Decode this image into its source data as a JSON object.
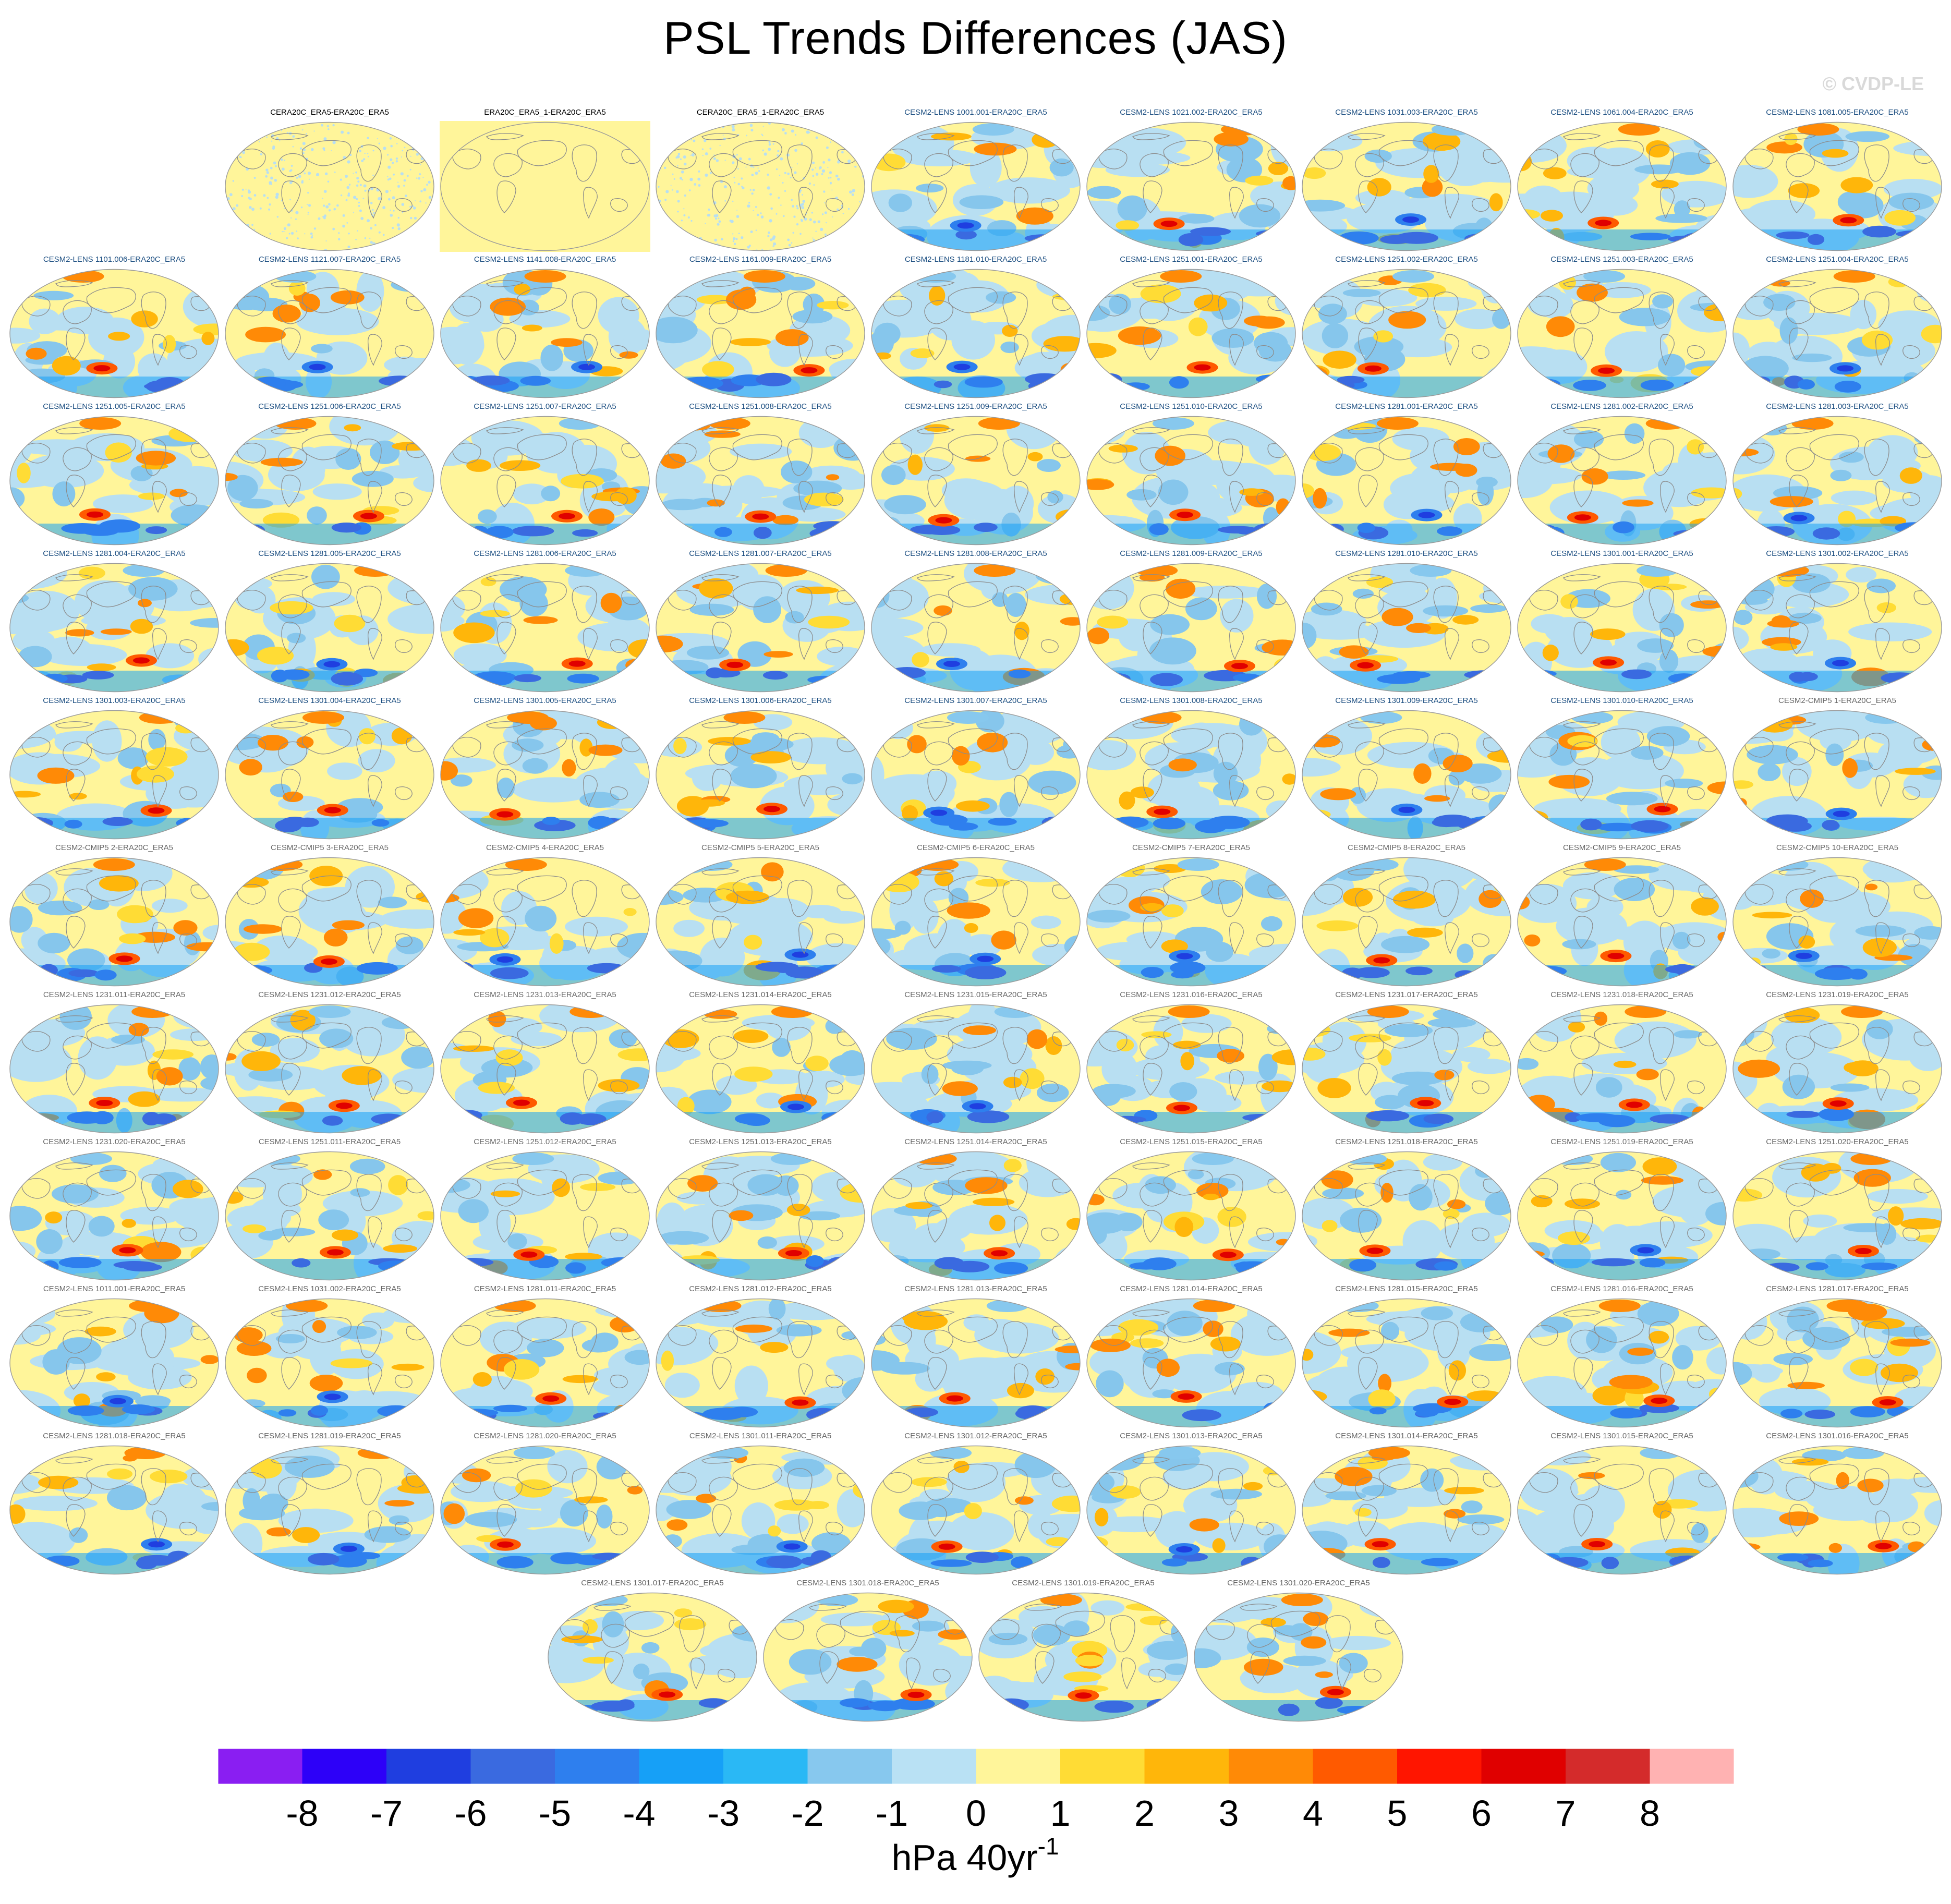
{
  "title": "PSL Trends Differences (JAS)",
  "copyright": "© CVDP-LE",
  "colors": {
    "ocean_base": "#fff59a",
    "light_blue": "#b8dff2",
    "mid_blue": "#86c6ec",
    "coast": "#8c8c8c",
    "outline": "#9a9a9a"
  },
  "chart_data": {
    "type": "heatmap",
    "title": "PSL Trends Differences (JAS)",
    "projection": "global maps (robinson-like)",
    "colorbar": {
      "units_label": "hPa 40yr",
      "units_superscript": "-1",
      "ticks": [
        "-8",
        "-7",
        "-6",
        "-5",
        "-4",
        "-3",
        "-2",
        "-1",
        "0",
        "1",
        "2",
        "3",
        "4",
        "5",
        "6",
        "7",
        "8"
      ],
      "colors": [
        "#8a1ef2",
        "#2d00f8",
        "#1f3ee0",
        "#3a6ae0",
        "#2e7fee",
        "#16a0f7",
        "#2ab8f5",
        "#87c8ee",
        "#b9e1f4",
        "#fff59a",
        "#ffdc35",
        "#ffb60a",
        "#ff8a06",
        "#ff5a00",
        "#ff1500",
        "#e00000",
        "#d42b2b",
        "#ffb2b2"
      ]
    },
    "panels": [
      {
        "label": "CERA20C_ERA5-ERA20C_ERA5",
        "group": "obs"
      },
      {
        "label": "ERA20C_ERA5_1-ERA20C_ERA5",
        "group": "obs"
      },
      {
        "label": "CERA20C_ERA5_1-ERA20C_ERA5",
        "group": "obs"
      },
      {
        "label": "CESM2-LENS 1001.001-ERA20C_ERA5",
        "group": "blue"
      },
      {
        "label": "CESM2-LENS 1021.002-ERA20C_ERA5",
        "group": "blue"
      },
      {
        "label": "CESM2-LENS 1031.003-ERA20C_ERA5",
        "group": "blue"
      },
      {
        "label": "CESM2-LENS 1061.004-ERA20C_ERA5",
        "group": "blue"
      },
      {
        "label": "CESM2-LENS 1081.005-ERA20C_ERA5",
        "group": "blue"
      },
      {
        "label": "CESM2-LENS 1101.006-ERA20C_ERA5",
        "group": "blue"
      },
      {
        "label": "CESM2-LENS 1121.007-ERA20C_ERA5",
        "group": "blue"
      },
      {
        "label": "CESM2-LENS 1141.008-ERA20C_ERA5",
        "group": "blue"
      },
      {
        "label": "CESM2-LENS 1161.009-ERA20C_ERA5",
        "group": "blue"
      },
      {
        "label": "CESM2-LENS 1181.010-ERA20C_ERA5",
        "group": "blue"
      },
      {
        "label": "CESM2-LENS 1251.001-ERA20C_ERA5",
        "group": "blue"
      },
      {
        "label": "CESM2-LENS 1251.002-ERA20C_ERA5",
        "group": "blue"
      },
      {
        "label": "CESM2-LENS 1251.003-ERA20C_ERA5",
        "group": "blue"
      },
      {
        "label": "CESM2-LENS 1251.004-ERA20C_ERA5",
        "group": "blue"
      },
      {
        "label": "CESM2-LENS 1251.005-ERA20C_ERA5",
        "group": "blue"
      },
      {
        "label": "CESM2-LENS 1251.006-ERA20C_ERA5",
        "group": "blue"
      },
      {
        "label": "CESM2-LENS 1251.007-ERA20C_ERA5",
        "group": "blue"
      },
      {
        "label": "CESM2-LENS 1251.008-ERA20C_ERA5",
        "group": "blue"
      },
      {
        "label": "CESM2-LENS 1251.009-ERA20C_ERA5",
        "group": "blue"
      },
      {
        "label": "CESM2-LENS 1251.010-ERA20C_ERA5",
        "group": "blue"
      },
      {
        "label": "CESM2-LENS 1281.001-ERA20C_ERA5",
        "group": "blue"
      },
      {
        "label": "CESM2-LENS 1281.002-ERA20C_ERA5",
        "group": "blue"
      },
      {
        "label": "CESM2-LENS 1281.003-ERA20C_ERA5",
        "group": "blue"
      },
      {
        "label": "CESM2-LENS 1281.004-ERA20C_ERA5",
        "group": "blue"
      },
      {
        "label": "CESM2-LENS 1281.005-ERA20C_ERA5",
        "group": "blue"
      },
      {
        "label": "CESM2-LENS 1281.006-ERA20C_ERA5",
        "group": "blue"
      },
      {
        "label": "CESM2-LENS 1281.007-ERA20C_ERA5",
        "group": "blue"
      },
      {
        "label": "CESM2-LENS 1281.008-ERA20C_ERA5",
        "group": "blue"
      },
      {
        "label": "CESM2-LENS 1281.009-ERA20C_ERA5",
        "group": "blue"
      },
      {
        "label": "CESM2-LENS 1281.010-ERA20C_ERA5",
        "group": "blue"
      },
      {
        "label": "CESM2-LENS 1301.001-ERA20C_ERA5",
        "group": "blue"
      },
      {
        "label": "CESM2-LENS 1301.002-ERA20C_ERA5",
        "group": "blue"
      },
      {
        "label": "CESM2-LENS 1301.003-ERA20C_ERA5",
        "group": "blue"
      },
      {
        "label": "CESM2-LENS 1301.004-ERA20C_ERA5",
        "group": "blue"
      },
      {
        "label": "CESM2-LENS 1301.005-ERA20C_ERA5",
        "group": "blue"
      },
      {
        "label": "CESM2-LENS 1301.006-ERA20C_ERA5",
        "group": "blue"
      },
      {
        "label": "CESM2-LENS 1301.007-ERA20C_ERA5",
        "group": "blue"
      },
      {
        "label": "CESM2-LENS 1301.008-ERA20C_ERA5",
        "group": "blue"
      },
      {
        "label": "CESM2-LENS 1301.009-ERA20C_ERA5",
        "group": "blue"
      },
      {
        "label": "CESM2-LENS 1301.010-ERA20C_ERA5",
        "group": "blue"
      },
      {
        "label": "CESM2-CMIP5 1-ERA20C_ERA5",
        "group": "gray"
      },
      {
        "label": "CESM2-CMIP5 2-ERA20C_ERA5",
        "group": "gray"
      },
      {
        "label": "CESM2-CMIP5 3-ERA20C_ERA5",
        "group": "gray"
      },
      {
        "label": "CESM2-CMIP5 4-ERA20C_ERA5",
        "group": "gray"
      },
      {
        "label": "CESM2-CMIP5 5-ERA20C_ERA5",
        "group": "gray"
      },
      {
        "label": "CESM2-CMIP5 6-ERA20C_ERA5",
        "group": "gray"
      },
      {
        "label": "CESM2-CMIP5 7-ERA20C_ERA5",
        "group": "gray"
      },
      {
        "label": "CESM2-CMIP5 8-ERA20C_ERA5",
        "group": "gray"
      },
      {
        "label": "CESM2-CMIP5 9-ERA20C_ERA5",
        "group": "gray"
      },
      {
        "label": "CESM2-CMIP5 10-ERA20C_ERA5",
        "group": "gray"
      },
      {
        "label": "CESM2-LENS 1231.011-ERA20C_ERA5",
        "group": "gray"
      },
      {
        "label": "CESM2-LENS 1231.012-ERA20C_ERA5",
        "group": "gray"
      },
      {
        "label": "CESM2-LENS 1231.013-ERA20C_ERA5",
        "group": "gray"
      },
      {
        "label": "CESM2-LENS 1231.014-ERA20C_ERA5",
        "group": "gray"
      },
      {
        "label": "CESM2-LENS 1231.015-ERA20C_ERA5",
        "group": "gray"
      },
      {
        "label": "CESM2-LENS 1231.016-ERA20C_ERA5",
        "group": "gray"
      },
      {
        "label": "CESM2-LENS 1231.017-ERA20C_ERA5",
        "group": "gray"
      },
      {
        "label": "CESM2-LENS 1231.018-ERA20C_ERA5",
        "group": "gray"
      },
      {
        "label": "CESM2-LENS 1231.019-ERA20C_ERA5",
        "group": "gray"
      },
      {
        "label": "CESM2-LENS 1231.020-ERA20C_ERA5",
        "group": "gray"
      },
      {
        "label": "CESM2-LENS 1251.011-ERA20C_ERA5",
        "group": "gray"
      },
      {
        "label": "CESM2-LENS 1251.012-ERA20C_ERA5",
        "group": "gray"
      },
      {
        "label": "CESM2-LENS 1251.013-ERA20C_ERA5",
        "group": "gray"
      },
      {
        "label": "CESM2-LENS 1251.014-ERA20C_ERA5",
        "group": "gray"
      },
      {
        "label": "CESM2-LENS 1251.015-ERA20C_ERA5",
        "group": "gray"
      },
      {
        "label": "CESM2-LENS 1251.018-ERA20C_ERA5",
        "group": "gray"
      },
      {
        "label": "CESM2-LENS 1251.019-ERA20C_ERA5",
        "group": "gray"
      },
      {
        "label": "CESM2-LENS 1251.020-ERA20C_ERA5",
        "group": "gray"
      },
      {
        "label": "CESM2-LENS 1011.001-ERA20C_ERA5",
        "group": "gray"
      },
      {
        "label": "CESM2-LENS 1031.002-ERA20C_ERA5",
        "group": "gray"
      },
      {
        "label": "CESM2-LENS 1281.011-ERA20C_ERA5",
        "group": "gray"
      },
      {
        "label": "CESM2-LENS 1281.012-ERA20C_ERA5",
        "group": "gray"
      },
      {
        "label": "CESM2-LENS 1281.013-ERA20C_ERA5",
        "group": "gray"
      },
      {
        "label": "CESM2-LENS 1281.014-ERA20C_ERA5",
        "group": "gray"
      },
      {
        "label": "CESM2-LENS 1281.015-ERA20C_ERA5",
        "group": "gray"
      },
      {
        "label": "CESM2-LENS 1281.016-ERA20C_ERA5",
        "group": "gray"
      },
      {
        "label": "CESM2-LENS 1281.017-ERA20C_ERA5",
        "group": "gray"
      },
      {
        "label": "CESM2-LENS 1281.018-ERA20C_ERA5",
        "group": "gray"
      },
      {
        "label": "CESM2-LENS 1281.019-ERA20C_ERA5",
        "group": "gray"
      },
      {
        "label": "CESM2-LENS 1281.020-ERA20C_ERA5",
        "group": "gray"
      },
      {
        "label": "CESM2-LENS 1301.011-ERA20C_ERA5",
        "group": "gray"
      },
      {
        "label": "CESM2-LENS 1301.012-ERA20C_ERA5",
        "group": "gray"
      },
      {
        "label": "CESM2-LENS 1301.013-ERA20C_ERA5",
        "group": "gray"
      },
      {
        "label": "CESM2-LENS 1301.014-ERA20C_ERA5",
        "group": "gray"
      },
      {
        "label": "CESM2-LENS 1301.015-ERA20C_ERA5",
        "group": "gray"
      },
      {
        "label": "CESM2-LENS 1301.016-ERA20C_ERA5",
        "group": "gray"
      },
      {
        "label": "CESM2-LENS 1301.017-ERA20C_ERA5",
        "group": "gray"
      },
      {
        "label": "CESM2-LENS 1301.018-ERA20C_ERA5",
        "group": "gray"
      },
      {
        "label": "CESM2-LENS 1301.019-ERA20C_ERA5",
        "group": "gray"
      },
      {
        "label": "CESM2-LENS 1301.020-ERA20C_ERA5",
        "group": "gray"
      }
    ]
  }
}
